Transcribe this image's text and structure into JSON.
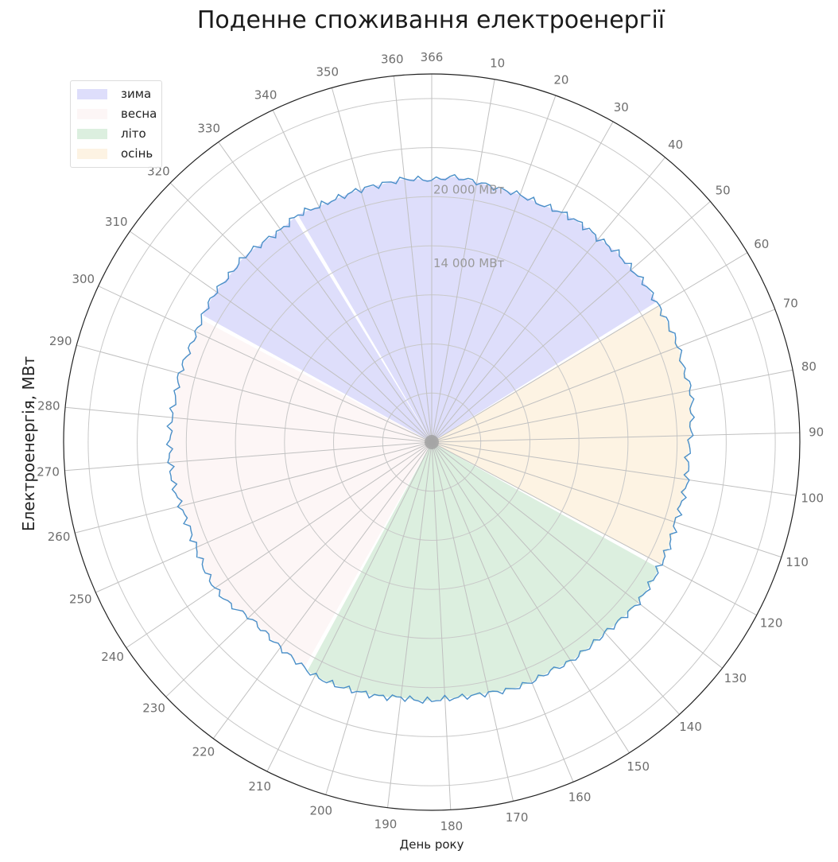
{
  "chart_data": {
    "type": "polar-area",
    "title": "Поденне споживання електроенергії",
    "xlabel": "День року",
    "ylabel": "Електроенергія, МВт",
    "angular_axis": {
      "range": [
        0,
        366
      ],
      "direction": "clockwise",
      "zero_location": "top",
      "tick_labels": [
        "366",
        "10",
        "20",
        "30",
        "40",
        "50",
        "60",
        "70",
        "80",
        "90",
        "100",
        "110",
        "120",
        "130",
        "140",
        "150",
        "160",
        "170",
        "180",
        "190",
        "200",
        "210",
        "220",
        "230",
        "240",
        "250",
        "260",
        "270",
        "280",
        "290",
        "300",
        "310",
        "320",
        "330",
        "340",
        "350",
        "360"
      ],
      "tick_values": [
        0,
        10,
        20,
        30,
        40,
        50,
        60,
        70,
        80,
        90,
        100,
        110,
        120,
        130,
        140,
        150,
        160,
        170,
        180,
        190,
        200,
        210,
        220,
        230,
        240,
        250,
        260,
        270,
        280,
        290,
        300,
        310,
        320,
        330,
        340,
        350,
        360
      ]
    },
    "radial_axis": {
      "range": [
        0,
        30000
      ],
      "tick_values": [
        14000,
        20000
      ],
      "tick_labels": [
        "14 000 МВт",
        "20 000 МВт"
      ],
      "gridlines": [
        4000,
        8000,
        12000,
        16000,
        20000,
        24000,
        28000
      ]
    },
    "grid": true,
    "legend": {
      "position": "top-left",
      "entries": [
        {
          "label": "зима",
          "color": "#dedefb"
        },
        {
          "label": "весна",
          "color": "#fdf6f6"
        },
        {
          "label": "літо",
          "color": "#dcefdf"
        },
        {
          "label": "осінь",
          "color": "#fdf3e3"
        }
      ]
    },
    "seasons": [
      {
        "name": "зима",
        "start": 335,
        "end": 366,
        "color": "#dedefb"
      },
      {
        "name": "зима",
        "start": 0,
        "end": 59,
        "color": "#dedefb"
      },
      {
        "name": "осінь",
        "start": 60,
        "end": 120,
        "color": "#fdf3e3"
      },
      {
        "name": "літо",
        "start": 121,
        "end": 212,
        "color": "#dcefdf"
      },
      {
        "name": "весна",
        "start": 213,
        "end": 303,
        "color": "#fdf6f6"
      },
      {
        "name": "зима",
        "start": 304,
        "end": 334,
        "color": "#dedefb"
      }
    ],
    "series": [
      {
        "color": "#4a8fc8",
        "day": [
          0,
          5,
          10,
          15,
          20,
          25,
          30,
          35,
          40,
          45,
          50,
          55,
          60,
          65,
          70,
          75,
          80,
          85,
          90,
          95,
          100,
          105,
          110,
          115,
          120,
          125,
          130,
          135,
          140,
          145,
          150,
          155,
          160,
          165,
          170,
          175,
          180,
          185,
          190,
          195,
          200,
          205,
          210,
          215,
          220,
          225,
          230,
          235,
          240,
          245,
          250,
          255,
          260,
          265,
          270,
          275,
          280,
          285,
          290,
          295,
          300,
          305,
          310,
          315,
          320,
          325,
          330,
          335,
          340,
          345,
          350,
          355,
          360,
          366
        ],
        "value": [
          21350,
          21700,
          21500,
          21350,
          21400,
          21300,
          21500,
          21550,
          21450,
          21600,
          21550,
          21650,
          21550,
          21550,
          21550,
          21350,
          21550,
          21300,
          21100,
          20900,
          21050,
          20950,
          20900,
          21100,
          21150,
          21250,
          21300,
          21150,
          21000,
          21050,
          21150,
          21000,
          21150,
          21150,
          20950,
          20900,
          20950,
          21100,
          20950,
          21150,
          21200,
          21300,
          21300,
          21000,
          20800,
          20600,
          20600,
          21100,
          21300,
          21200,
          21050,
          20950,
          21100,
          21350,
          21400,
          21350,
          21300,
          21200,
          21300,
          21150,
          21150,
          21350,
          21450,
          21350,
          21500,
          21300,
          21200,
          21500,
          21300,
          21300,
          21400,
          21400,
          21550,
          21350
        ]
      }
    ]
  }
}
